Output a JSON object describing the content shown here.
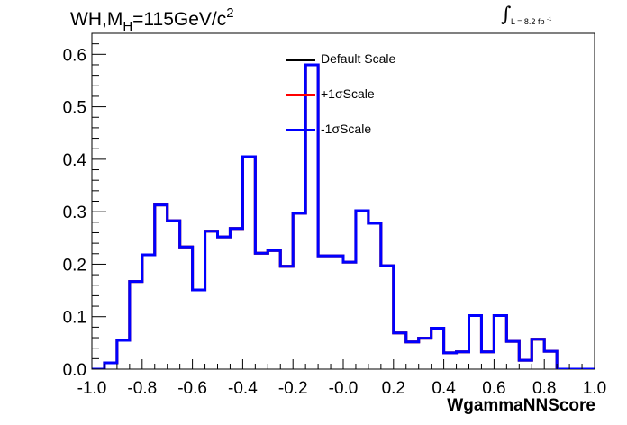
{
  "title": {
    "prefix": "WH,M",
    "subscript": "H",
    "middle": "=115GeV/c",
    "superscript": "2"
  },
  "lumi": {
    "integral": "∫",
    "text": "L = 8.2 fb",
    "superscript": "-1"
  },
  "legend": [
    {
      "label": "Default Scale",
      "color": "#000000"
    },
    {
      "label": "+1σScale",
      "color": "#ff0000"
    },
    {
      "label": "-1σScale",
      "color": "#0000ff"
    }
  ],
  "chart_data": {
    "type": "histogram",
    "xlabel": "WgammaNNScore",
    "ylabel": "",
    "xlim": [
      -1.0,
      1.0
    ],
    "ylim": [
      0,
      0.64
    ],
    "xticks": [
      -1.0,
      -0.8,
      -0.6,
      -0.4,
      -0.2,
      0.0,
      0.2,
      0.4,
      0.6,
      0.8,
      1.0
    ],
    "xtick_labels": [
      "-1.0",
      "-0.8",
      "-0.6",
      "-0.4",
      "-0.2",
      "-0.0",
      "0.2",
      "0.4",
      "0.6",
      "0.8",
      "1.0"
    ],
    "yticks": [
      0,
      0.1,
      0.2,
      0.3,
      0.4,
      0.5,
      0.6
    ],
    "ytick_labels": [
      "0.0",
      "0.1",
      "0.2",
      "0.3",
      "0.4",
      "0.5",
      "0.6"
    ],
    "bin_edges": [
      -1.0,
      -0.95,
      -0.9,
      -0.85,
      -0.8,
      -0.75,
      -0.7,
      -0.65,
      -0.6,
      -0.55,
      -0.5,
      -0.45,
      -0.4,
      -0.35,
      -0.3,
      -0.25,
      -0.2,
      -0.15,
      -0.1,
      -0.05,
      0.0,
      0.05,
      0.1,
      0.15,
      0.2,
      0.25,
      0.3,
      0.35,
      0.4,
      0.45,
      0.5,
      0.55,
      0.6,
      0.65,
      0.7,
      0.75,
      0.8,
      0.85,
      0.9,
      0.95,
      1.0
    ],
    "series": [
      {
        "name": "Default Scale",
        "color": "#000000",
        "values": [
          0.0,
          0.012,
          0.055,
          0.167,
          0.218,
          0.313,
          0.283,
          0.233,
          0.151,
          0.263,
          0.252,
          0.268,
          0.405,
          0.221,
          0.226,
          0.196,
          0.297,
          0.58,
          0.216,
          0.216,
          0.204,
          0.302,
          0.278,
          0.197,
          0.069,
          0.052,
          0.059,
          0.078,
          0.031,
          0.033,
          0.102,
          0.033,
          0.102,
          0.053,
          0.017,
          0.057,
          0.034,
          0.0,
          0.0,
          0.0
        ]
      },
      {
        "name": "+1σScale",
        "color": "#ff0000",
        "values": [
          0.0,
          0.012,
          0.055,
          0.167,
          0.218,
          0.313,
          0.283,
          0.233,
          0.151,
          0.263,
          0.252,
          0.268,
          0.405,
          0.221,
          0.226,
          0.196,
          0.297,
          0.58,
          0.216,
          0.216,
          0.204,
          0.302,
          0.278,
          0.197,
          0.069,
          0.052,
          0.059,
          0.078,
          0.031,
          0.033,
          0.102,
          0.033,
          0.102,
          0.053,
          0.017,
          0.057,
          0.034,
          0.0,
          0.0,
          0.0
        ]
      },
      {
        "name": "-1σScale",
        "color": "#0000ff",
        "values": [
          0.0,
          0.012,
          0.055,
          0.167,
          0.218,
          0.313,
          0.283,
          0.233,
          0.151,
          0.263,
          0.252,
          0.268,
          0.405,
          0.221,
          0.226,
          0.196,
          0.297,
          0.58,
          0.216,
          0.216,
          0.204,
          0.302,
          0.278,
          0.197,
          0.069,
          0.052,
          0.059,
          0.078,
          0.031,
          0.033,
          0.102,
          0.033,
          0.102,
          0.053,
          0.017,
          0.057,
          0.034,
          0.0,
          0.0,
          0.0
        ]
      }
    ]
  }
}
